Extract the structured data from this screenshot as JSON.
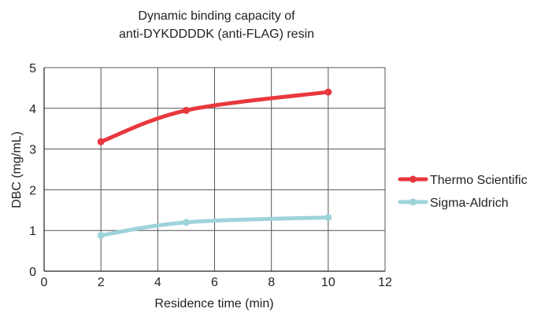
{
  "chart_data": {
    "type": "line",
    "title_lines": [
      "Dynamic binding capacity of",
      "anti-DYKDDDDK (anti-FLAG) resin"
    ],
    "xlabel": "Residence time (min)",
    "ylabel": "DBC (mg/mL)",
    "xlim": [
      0,
      12
    ],
    "ylim": [
      0,
      5
    ],
    "xticks": [
      0,
      2,
      4,
      6,
      8,
      10,
      12
    ],
    "yticks": [
      0,
      1,
      2,
      3,
      4,
      5
    ],
    "grid": true,
    "legend_position": "right",
    "series": [
      {
        "name": "Thermo Scientific",
        "color": "#e8383d",
        "x": [
          2,
          5,
          10
        ],
        "y": [
          3.18,
          3.95,
          4.4
        ]
      },
      {
        "name": "Sigma-Aldrich",
        "color": "#9fd3dc",
        "x": [
          2,
          5,
          10
        ],
        "y": [
          0.88,
          1.2,
          1.32
        ]
      }
    ]
  }
}
